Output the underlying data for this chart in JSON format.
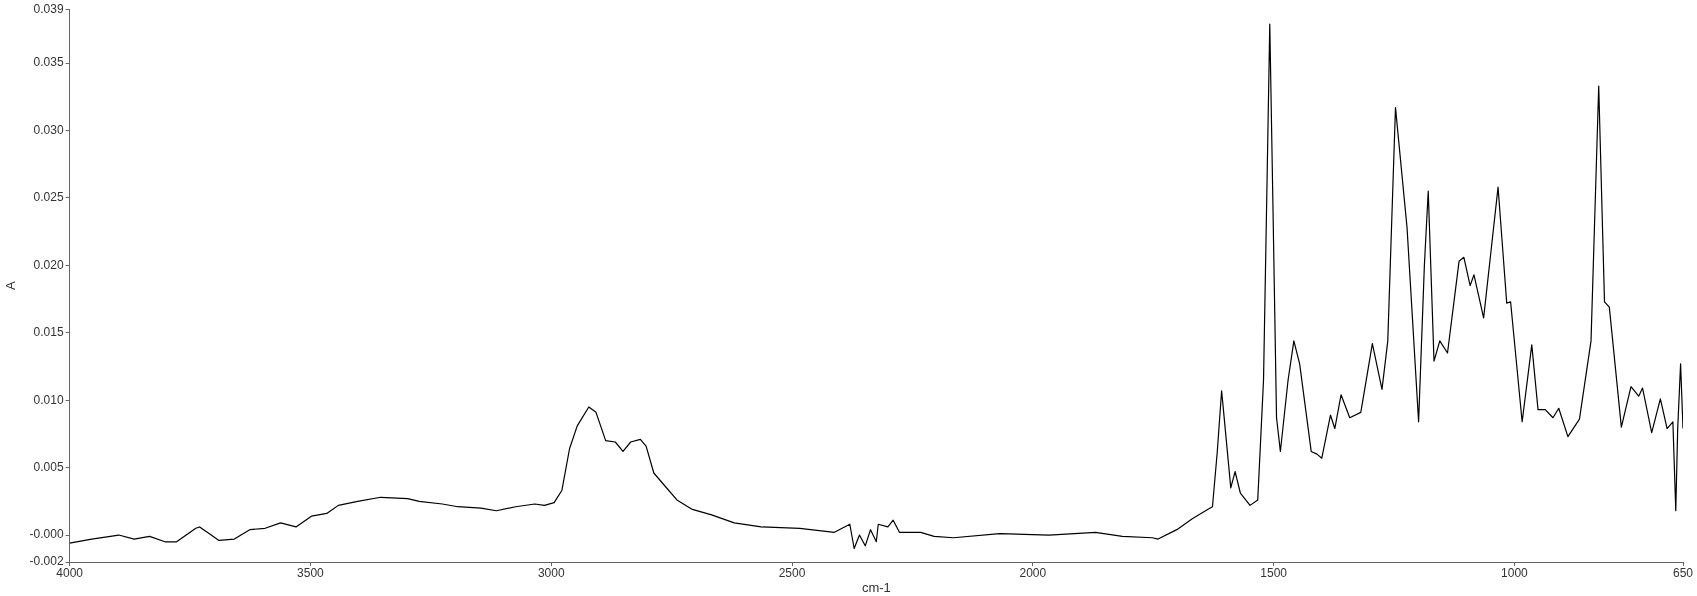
{
  "chart_data": {
    "type": "line",
    "xlabel": "cm-1",
    "ylabel": "A",
    "xlim": [
      4000,
      650
    ],
    "ylim": [
      -0.002,
      0.039
    ],
    "xticks": [
      4000,
      3500,
      3000,
      2500,
      2000,
      1500,
      1000,
      650
    ],
    "yticks": [
      {
        "value": -0.002,
        "label": "-0.002"
      },
      {
        "value": 0,
        "label": "-0.000"
      },
      {
        "value": 0.005,
        "label": "0.005"
      },
      {
        "value": 0.01,
        "label": "0.010"
      },
      {
        "value": 0.015,
        "label": "0.015"
      },
      {
        "value": 0.02,
        "label": "0.020"
      },
      {
        "value": 0.025,
        "label": "0.025"
      },
      {
        "value": 0.03,
        "label": "0.030"
      },
      {
        "value": 0.035,
        "label": "0.035"
      },
      {
        "value": 0.039,
        "label": "0.039"
      }
    ],
    "grid": false,
    "marker": "none",
    "line_style": "solid",
    "series": [
      {
        "color": "#000000",
        "x": [
          4000,
          3954,
          3898,
          3866,
          3834,
          3802,
          3778,
          3738,
          3730,
          3706,
          3690,
          3658,
          3626,
          3594,
          3562,
          3530,
          3498,
          3466,
          3442,
          3402,
          3354,
          3298,
          3274,
          3226,
          3194,
          3146,
          3114,
          3074,
          3034,
          3014,
          2994,
          2978,
          2962,
          2946,
          2922,
          2907,
          2887,
          2867,
          2851,
          2835,
          2815,
          2803,
          2787,
          2763,
          2739,
          2707,
          2667,
          2620,
          2564,
          2484,
          2412,
          2380,
          2371,
          2360,
          2348,
          2337,
          2325,
          2321,
          2301,
          2290,
          2277,
          2233,
          2205,
          2165,
          2069,
          1966,
          1870,
          1814,
          1752,
          1740,
          1701,
          1669,
          1637,
          1627,
          1617,
          1608,
          1599,
          1589,
          1580,
          1569,
          1549,
          1533,
          1521,
          1514,
          1508,
          1502,
          1494,
          1486,
          1470,
          1458,
          1446,
          1422,
          1410,
          1400,
          1382,
          1373,
          1360,
          1342,
          1319,
          1295,
          1275,
          1263,
          1247,
          1223,
          1199,
          1187,
          1179,
          1167,
          1155,
          1139,
          1115,
          1105,
          1092,
          1084,
          1064,
          1034,
          1016,
          1008,
          984,
          964,
          951,
          936,
          920,
          908,
          889,
          865,
          841,
          825,
          813,
          803,
          778,
          758,
          742,
          734,
          715,
          697,
          683,
          671,
          665,
          661,
          655,
          650
        ],
        "values": [
          -0.0006,
          -0.0003,
          0.0,
          -0.0003,
          -0.0001,
          -0.0005,
          -0.0005,
          0.0005,
          0.0006,
          0.0,
          -0.0004,
          -0.0003,
          0.0004,
          0.0005,
          0.0009,
          0.0006,
          0.0014,
          0.0016,
          0.0022,
          0.0025,
          0.0028,
          0.0027,
          0.0025,
          0.0023,
          0.0021,
          0.002,
          0.0018,
          0.0021,
          0.0023,
          0.0022,
          0.0024,
          0.0033,
          0.0064,
          0.0081,
          0.0095,
          0.0091,
          0.007,
          0.0069,
          0.0062,
          0.0069,
          0.0071,
          0.0066,
          0.0046,
          0.0036,
          0.0026,
          0.0019,
          0.0015,
          0.0009,
          0.0006,
          0.0005,
          0.0002,
          0.0008,
          -0.001,
          0.0,
          -0.0008,
          0.0004,
          -0.0005,
          0.0008,
          0.0006,
          0.0011,
          0.0002,
          0.0002,
          -0.0001,
          -0.0002,
          0.0001,
          0.0,
          0.0002,
          -0.0001,
          -0.0002,
          -0.0003,
          0.0004,
          0.0012,
          0.0019,
          0.0021,
          0.0062,
          0.0107,
          0.0073,
          0.0035,
          0.0047,
          0.0031,
          0.0022,
          0.0026,
          0.0115,
          0.0256,
          0.0379,
          0.0256,
          0.0087,
          0.0062,
          0.0115,
          0.0144,
          0.0127,
          0.0062,
          0.006,
          0.0057,
          0.0089,
          0.0079,
          0.0104,
          0.0087,
          0.0091,
          0.0142,
          0.0108,
          0.0144,
          0.0317,
          0.0228,
          0.0084,
          0.02,
          0.0255,
          0.0129,
          0.0144,
          0.0135,
          0.0203,
          0.0206,
          0.0185,
          0.0193,
          0.0161,
          0.0258,
          0.0172,
          0.0173,
          0.0084,
          0.0141,
          0.0093,
          0.0093,
          0.0087,
          0.0094,
          0.0073,
          0.0086,
          0.0144,
          0.0333,
          0.0173,
          0.0169,
          0.008,
          0.011,
          0.0103,
          0.0109,
          0.0076,
          0.0101,
          0.0079,
          0.0084,
          0.0018,
          0.0079,
          0.0127,
          0.0079
        ]
      }
    ]
  }
}
